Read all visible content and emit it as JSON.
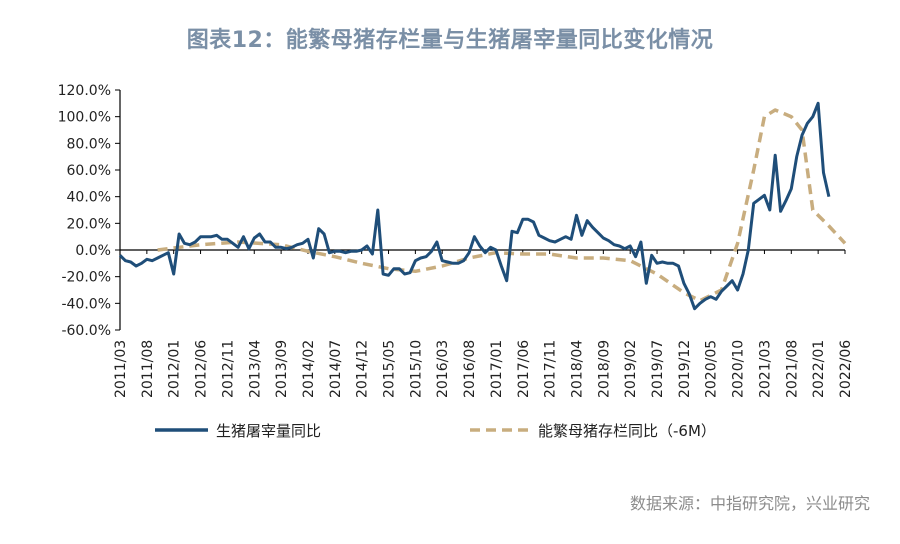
{
  "title": "图表12：能繁母猪存栏量与生猪屠宰量同比变化情况",
  "source": "数据来源：中指研究院，兴业研究",
  "colors": {
    "series1": "#1f4e79",
    "series2": "#c8ad7f",
    "axis": "#000000"
  },
  "chart_data": {
    "type": "line",
    "title": "图表12：能繁母猪存栏量与生猪屠宰量同比变化情况",
    "xlabel": "",
    "ylabel": "",
    "ylim": [
      -60,
      120
    ],
    "yticks": [
      "120.0%",
      "100.0%",
      "80.0%",
      "60.0%",
      "40.0%",
      "20.0%",
      "0.0%",
      "-20.0%",
      "-40.0%",
      "-60.0%"
    ],
    "ytick_values": [
      120,
      100,
      80,
      60,
      40,
      20,
      0,
      -20,
      -40,
      -60
    ],
    "xticks": [
      "2011/03",
      "2011/08",
      "2012/01",
      "2012/06",
      "2012/11",
      "2013/04",
      "2013/09",
      "2014/02",
      "2014/07",
      "2014/12",
      "2015/05",
      "2015/10",
      "2016/03",
      "2016/08",
      "2017/01",
      "2017/06",
      "2017/11",
      "2018/04",
      "2018/09",
      "2019/02",
      "2019/07",
      "2019/12",
      "2020/05",
      "2020/10",
      "2021/03",
      "2021/08",
      "2022/01",
      "2022/06"
    ],
    "x_start": "2011/03",
    "x_end": "2022/06",
    "grid": false,
    "legend_position": "bottom",
    "series": [
      {
        "name": "生猪屠宰量同比",
        "style": "solid",
        "values": [
          -4,
          -8,
          -9,
          -12,
          -10,
          -7,
          -8,
          -6,
          -4,
          -2,
          -18,
          12,
          5,
          4,
          6,
          10,
          10,
          10,
          11,
          8,
          8,
          5,
          2,
          10,
          1,
          9,
          12,
          6,
          6,
          2,
          2,
          1,
          2,
          4,
          5,
          8,
          -6,
          16,
          12,
          -2,
          -1,
          -1,
          -2,
          -1,
          -1,
          0,
          3,
          -3,
          30,
          -18,
          -19,
          -14,
          -14,
          -18,
          -17,
          -8,
          -6,
          -5,
          -1,
          6,
          -8,
          -9,
          -10,
          -10,
          -8,
          -2,
          10,
          3,
          -2,
          2,
          0,
          -12,
          -23,
          14,
          13,
          23,
          23,
          21,
          11,
          9,
          7,
          6,
          8,
          10,
          8,
          26,
          11,
          22,
          17,
          13,
          9,
          7,
          4,
          3,
          1,
          3,
          -5,
          6,
          -25,
          -4,
          -10,
          -9,
          -10,
          -10,
          -12,
          -25,
          -33,
          -44,
          -40,
          -37,
          -35,
          -37,
          -31,
          -27,
          -23,
          -30,
          -18,
          0,
          35,
          38,
          41,
          30,
          71,
          29,
          37,
          46,
          70,
          86,
          95,
          100,
          110,
          58,
          40
        ],
        "start": "2011/03"
      },
      {
        "name": "能繁母猪存栏同比（-6M）",
        "style": "dashed",
        "points": [
          [
            "2011/10",
            0
          ],
          [
            "2012/06",
            4
          ],
          [
            "2013/01",
            6
          ],
          [
            "2013/09",
            4
          ],
          [
            "2014/02",
            -1
          ],
          [
            "2014/07",
            -5
          ],
          [
            "2014/12",
            -10
          ],
          [
            "2015/05",
            -14
          ],
          [
            "2015/10",
            -16
          ],
          [
            "2016/03",
            -12
          ],
          [
            "2016/08",
            -6
          ],
          [
            "2017/01",
            -2
          ],
          [
            "2017/06",
            -3
          ],
          [
            "2017/11",
            -3
          ],
          [
            "2018/04",
            -6
          ],
          [
            "2018/09",
            -6
          ],
          [
            "2019/02",
            -8
          ],
          [
            "2019/07",
            -18
          ],
          [
            "2019/12",
            -32
          ],
          [
            "2020/03",
            -38
          ],
          [
            "2020/07",
            -30
          ],
          [
            "2020/10",
            5
          ],
          [
            "2021/01",
            60
          ],
          [
            "2021/03",
            100
          ],
          [
            "2021/05",
            105
          ],
          [
            "2021/08",
            100
          ],
          [
            "2021/10",
            90
          ],
          [
            "2021/12",
            30
          ],
          [
            "2022/03",
            18
          ],
          [
            "2022/06",
            5
          ]
        ]
      }
    ]
  }
}
